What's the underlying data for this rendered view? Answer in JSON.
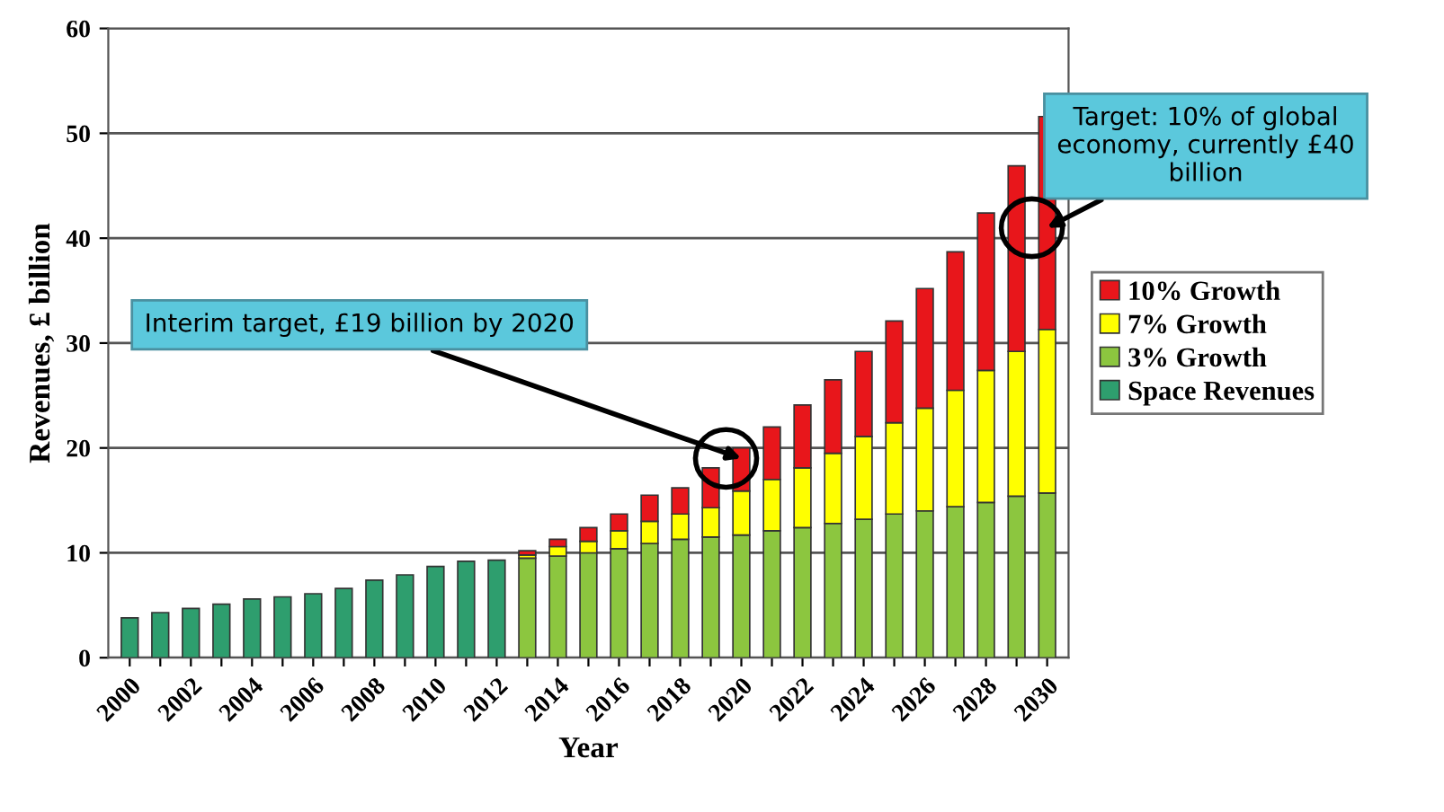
{
  "chart_data": {
    "type": "bar",
    "stacked": true,
    "xlabel": "Year",
    "ylabel": "Revenues, £ billion",
    "categories": [
      "2000",
      null,
      "2002",
      null,
      "2004",
      null,
      "2006",
      null,
      "2008",
      null,
      "2010",
      null,
      "2012",
      null,
      "2014",
      null,
      "2016",
      null,
      "2018",
      null,
      "2020",
      null,
      "2022",
      null,
      "2024",
      null,
      "2026",
      null,
      "2028",
      null,
      "2030"
    ],
    "series": [
      {
        "name": "Space Revenues",
        "color": "#2e9e6e",
        "values": [
          3.8,
          4.3,
          4.7,
          5.1,
          5.6,
          5.8,
          6.1,
          6.6,
          7.4,
          7.9,
          8.7,
          9.2,
          9.3,
          null,
          null,
          null,
          null,
          null,
          null,
          null,
          null,
          null,
          null,
          null,
          null,
          null,
          null,
          null,
          null,
          null,
          null
        ]
      },
      {
        "name": "3% Growth",
        "color": "#8cc63f",
        "values": [
          null,
          null,
          null,
          null,
          null,
          null,
          null,
          null,
          null,
          null,
          null,
          null,
          null,
          9.5,
          9.7,
          10.0,
          10.4,
          10.9,
          11.3,
          11.5,
          11.7,
          12.1,
          12.4,
          12.8,
          13.2,
          13.7,
          14.0,
          14.4,
          14.8,
          15.4,
          15.7
        ]
      },
      {
        "name": "7% Growth",
        "color": "#ffff00",
        "values": [
          null,
          null,
          null,
          null,
          null,
          null,
          null,
          null,
          null,
          null,
          null,
          null,
          null,
          0.3,
          0.9,
          1.1,
          1.7,
          2.1,
          2.4,
          2.8,
          4.2,
          4.9,
          5.7,
          6.7,
          7.9,
          8.7,
          9.8,
          11.1,
          12.6,
          13.8,
          15.6
        ]
      },
      {
        "name": "10% Growth",
        "color": "#e8161b",
        "values": [
          null,
          null,
          null,
          null,
          null,
          null,
          null,
          null,
          null,
          null,
          null,
          null,
          null,
          0.4,
          0.7,
          1.3,
          1.6,
          2.5,
          2.5,
          3.8,
          4.1,
          5.0,
          6.0,
          7.0,
          8.1,
          9.7,
          11.4,
          13.2,
          15.0,
          17.7,
          20.3
        ]
      }
    ],
    "ylim": [
      0,
      60
    ],
    "yticks": [
      0,
      10,
      20,
      30,
      40,
      50,
      60
    ],
    "grid": "y",
    "legend": "right",
    "annotations": [
      {
        "text": "Interim target, £19 billion by 2020",
        "x": "2020",
        "y": 19
      },
      {
        "text": "Target: 10% of global economy, currently £40 billion",
        "x": "2030",
        "y": 41
      }
    ]
  }
}
